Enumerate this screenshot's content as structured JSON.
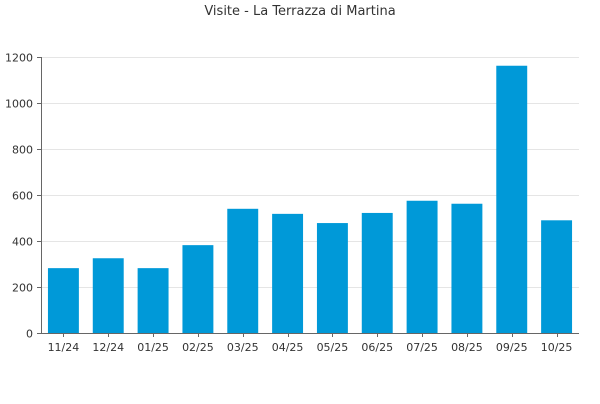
{
  "chart_data": {
    "type": "bar",
    "title": "Visite - La Terrazza di Martina",
    "xlabel": "",
    "ylabel": "",
    "categories": [
      "11/24",
      "12/24",
      "01/25",
      "02/25",
      "03/25",
      "04/25",
      "05/25",
      "06/25",
      "07/25",
      "08/25",
      "09/25",
      "10/25"
    ],
    "series": [
      {
        "values": [
          282,
          325,
          282,
          382,
          540,
          518,
          478,
          522,
          575,
          562,
          1162,
          490
        ],
        "color": "#0099d8"
      }
    ],
    "ylim": [
      0,
      1200
    ],
    "yticks": [
      0,
      200,
      400,
      600,
      800,
      1000,
      1200
    ],
    "grid": true,
    "legend": "none",
    "gridColor": "#e5e5e5",
    "axisColor": "#666666"
  }
}
